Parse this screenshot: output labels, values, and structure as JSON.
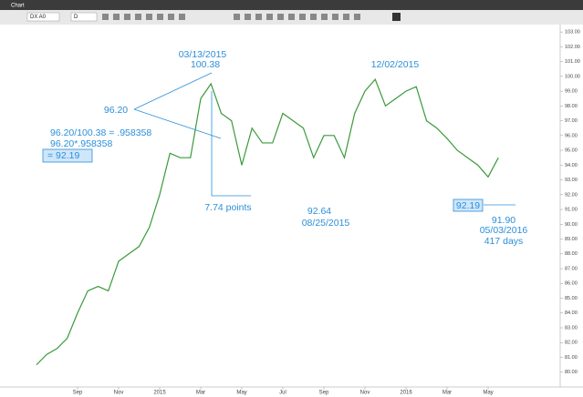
{
  "toolbar": {
    "title": "Chart",
    "symbol": "DX A0",
    "interval": "D"
  },
  "chart_data": {
    "type": "line",
    "color": "#3a9a3a",
    "categories": [
      null,
      null,
      null,
      null,
      "Sep",
      null,
      null,
      null,
      "Nov",
      null,
      null,
      null,
      "2015",
      null,
      null,
      null,
      "Mar",
      null,
      null,
      null,
      "May",
      null,
      null,
      null,
      "Jul",
      null,
      null,
      null,
      "Sep",
      null,
      null,
      null,
      "Nov",
      null,
      null,
      null,
      "2016",
      null,
      null,
      null,
      "Mar",
      null,
      null,
      null,
      "May",
      null
    ],
    "values": [
      80.5,
      81.2,
      81.6,
      82.3,
      84.0,
      85.5,
      85.8,
      85.5,
      87.5,
      88.0,
      88.5,
      89.8,
      92.0,
      94.8,
      94.5,
      94.5,
      98.5,
      99.5,
      97.5,
      97.0,
      94.0,
      96.5,
      95.5,
      95.5,
      97.5,
      97.0,
      96.5,
      94.5,
      96.0,
      96.0,
      94.5,
      97.5,
      99.0,
      99.8,
      98.0,
      98.5,
      99.0,
      99.3,
      97.0,
      96.5,
      95.8,
      95.0,
      94.5,
      94.0,
      93.2,
      94.5
    ],
    "ylim": [
      79.0,
      103.5
    ],
    "yticks": [
      {
        "value": 80,
        "label": "80.00"
      },
      {
        "value": 81,
        "label": "81.00"
      },
      {
        "value": 82,
        "label": "82.00"
      },
      {
        "value": 83,
        "label": "83.00"
      },
      {
        "value": 84,
        "label": "84.00"
      },
      {
        "value": 85,
        "label": "85.00"
      },
      {
        "value": 86,
        "label": "86.00"
      },
      {
        "value": 87,
        "label": "87.00"
      },
      {
        "value": 88,
        "label": "88.00"
      },
      {
        "value": 89,
        "label": "89.00"
      },
      {
        "value": 90,
        "label": "90.00"
      },
      {
        "value": 91,
        "label": "91.00"
      },
      {
        "value": 92,
        "label": "92.00"
      },
      {
        "value": 93,
        "label": "93.00"
      },
      {
        "value": 94,
        "label": "94.00"
      },
      {
        "value": 95,
        "label": "95.00"
      },
      {
        "value": 96,
        "label": "96.00"
      },
      {
        "value": 97,
        "label": "97.00"
      },
      {
        "value": 98,
        "label": "98.00"
      },
      {
        "value": 99,
        "label": "99.00"
      },
      {
        "value": 100,
        "label": "100.00"
      },
      {
        "value": 101,
        "label": "101.00"
      },
      {
        "value": 102,
        "label": "102.00"
      },
      {
        "value": 103,
        "label": "103.00"
      }
    ],
    "grid": false,
    "annotations": [
      "03/13/2015",
      "100.38",
      "96.20",
      "96.20/100.38 = .958358",
      "96.20*.958358",
      "= 92.19",
      "7.74 points",
      "12/02/2015",
      "92.64",
      "08/25/2015",
      "92.19",
      "91.90",
      "05/03/2016",
      "417 days"
    ]
  }
}
